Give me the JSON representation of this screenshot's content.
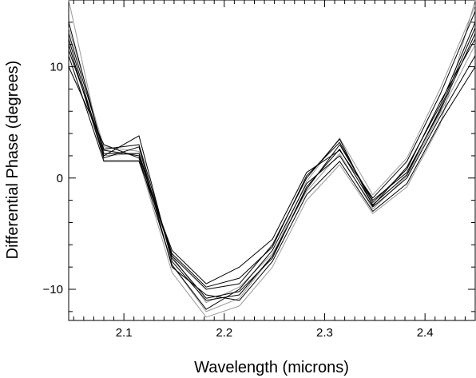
{
  "chart_data": {
    "type": "line",
    "title": "",
    "xlabel": "Wavelength (microns)",
    "ylabel": "Differential Phase (degrees)",
    "xlim": [
      2.045,
      2.45
    ],
    "ylim": [
      -12.8,
      16
    ],
    "xticks": [
      2.1,
      2.2,
      2.3,
      2.4
    ],
    "xtick_labels": [
      "2.1",
      "2.2",
      "2.3",
      "2.4"
    ],
    "yticks": [
      -10,
      0,
      10
    ],
    "ytick_labels": [
      "−10",
      "0",
      "10"
    ],
    "grid": false,
    "legend": "none",
    "x": [
      2.045,
      2.08,
      2.115,
      2.148,
      2.182,
      2.215,
      2.248,
      2.282,
      2.315,
      2.348,
      2.382,
      2.415,
      2.45
    ],
    "series": [
      {
        "color": "#000000",
        "values": [
          13.0,
          2.5,
          2.0,
          -7.0,
          -10.0,
          -9.5,
          -6.0,
          0.0,
          3.5,
          -2.5,
          1.0,
          6.5,
          14.0
        ]
      },
      {
        "color": "#000000",
        "values": [
          12.5,
          2.0,
          3.8,
          -7.5,
          -11.0,
          -10.5,
          -7.0,
          -1.0,
          3.0,
          -2.0,
          0.5,
          6.0,
          13.0
        ]
      },
      {
        "color": "#000000",
        "values": [
          11.0,
          1.5,
          1.5,
          -6.5,
          -9.5,
          -8.0,
          -5.5,
          0.5,
          2.5,
          -1.8,
          1.5,
          7.5,
          15.0
        ]
      },
      {
        "color": "#000000",
        "values": [
          10.0,
          3.0,
          1.8,
          -7.8,
          -11.8,
          -10.0,
          -6.5,
          -0.5,
          2.0,
          -2.6,
          0.0,
          5.5,
          11.0
        ]
      },
      {
        "color": "#000000",
        "values": [
          12.0,
          1.8,
          2.8,
          -8.0,
          -10.5,
          -11.0,
          -7.5,
          -1.5,
          1.5,
          -3.0,
          -0.5,
          5.0,
          10.0
        ]
      },
      {
        "color": "#000000",
        "values": [
          14.0,
          2.2,
          2.2,
          -6.8,
          -9.8,
          -9.0,
          -6.2,
          0.2,
          3.2,
          -2.2,
          0.8,
          6.8,
          12.5
        ]
      },
      {
        "color": "#000000",
        "values": [
          11.5,
          2.6,
          3.0,
          -7.2,
          -10.8,
          -10.2,
          -7.2,
          -0.8,
          2.6,
          -2.4,
          0.3,
          6.2,
          13.5
        ]
      },
      {
        "color": "#999999",
        "values": [
          16.0,
          1.6,
          1.6,
          -8.5,
          -12.5,
          -11.5,
          -8.0,
          -2.0,
          1.2,
          -3.2,
          -0.8,
          4.8,
          16.0
        ]
      },
      {
        "color": "#999999",
        "values": [
          13.5,
          2.8,
          2.4,
          -7.8,
          -12.0,
          -10.8,
          -7.0,
          -0.3,
          3.6,
          -1.5,
          1.8,
          8.0,
          15.5
        ]
      },
      {
        "color": "#999999",
        "values": [
          12.0,
          2.0,
          2.2,
          -7.0,
          -11.2,
          -9.8,
          -6.8,
          -1.2,
          2.2,
          -2.8,
          0.2,
          5.8,
          12.0
        ]
      }
    ]
  }
}
